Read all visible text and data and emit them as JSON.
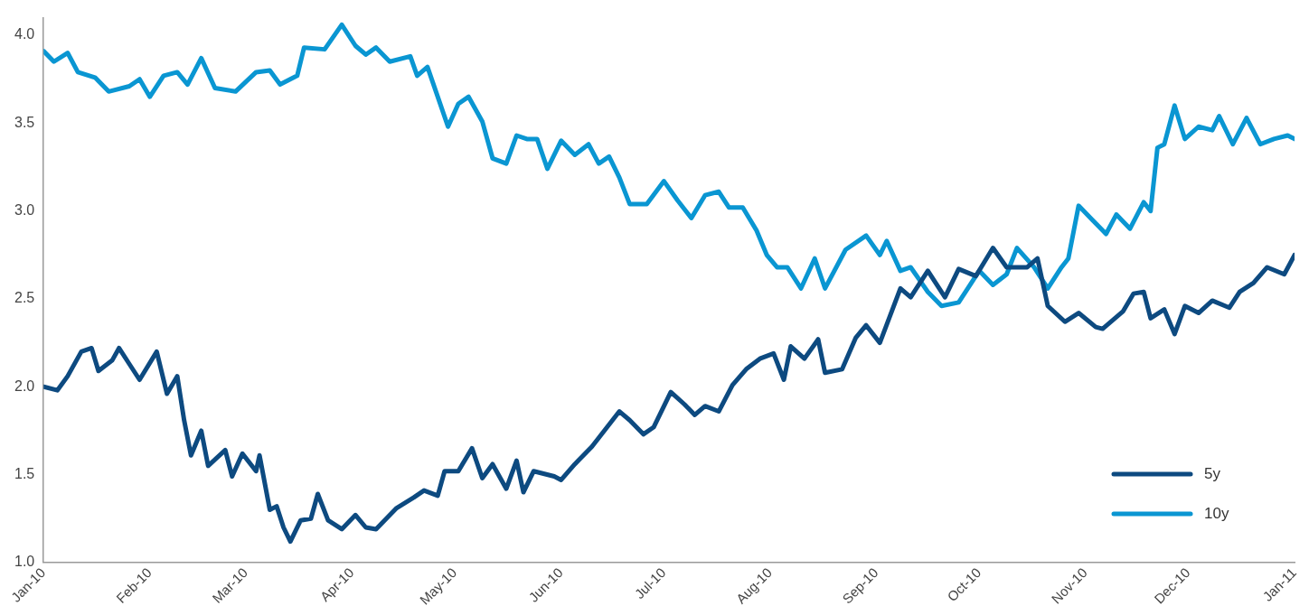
{
  "chart_data": {
    "type": "line",
    "legend": "bottom right",
    "marker": "none",
    "line_style": "solid",
    "grid": false,
    "xlim": [
      "2010-01-01",
      "2011-01-01"
    ],
    "xticks": [
      {
        "value": "2010-01-01",
        "label": "Jan-10"
      },
      {
        "value": "2010-02-01",
        "label": "Feb-10"
      },
      {
        "value": "2010-03-01",
        "label": "Mar-10"
      },
      {
        "value": "2010-04-01",
        "label": "Apr-10"
      },
      {
        "value": "2010-05-01",
        "label": "May-10"
      },
      {
        "value": "2010-06-01",
        "label": "Jun-10"
      },
      {
        "value": "2010-07-01",
        "label": "Jul-10"
      },
      {
        "value": "2010-08-01",
        "label": "Aug-10"
      },
      {
        "value": "2010-09-01",
        "label": "Sep-10"
      },
      {
        "value": "2010-10-01",
        "label": "Oct-10"
      },
      {
        "value": "2010-11-01",
        "label": "Nov-10"
      },
      {
        "value": "2010-12-01",
        "label": "Dec-10"
      },
      {
        "value": "2011-01-01",
        "label": "Jan-11"
      }
    ],
    "ylim": [
      1,
      4.1
    ],
    "yticks": [
      {
        "value": 1,
        "label": "1.0"
      },
      1.5,
      {
        "value": 2,
        "label": "2.0"
      },
      2.5,
      {
        "value": 3,
        "label": "3.0"
      },
      3.5,
      {
        "value": 4,
        "label": "4.0"
      }
    ],
    "series": [
      {
        "name": "5y",
        "color": "#0d4a80",
        "x": [
          "2010-01-01",
          "2010-01-05",
          "2010-01-08",
          "2010-01-12",
          "2010-01-15",
          "2010-01-17",
          "2010-01-21",
          "2010-01-23",
          "2010-01-26",
          "2010-01-29",
          "2010-02-03",
          "2010-02-06",
          "2010-02-09",
          "2010-02-11",
          "2010-02-13",
          "2010-02-16",
          "2010-02-18",
          "2010-02-23",
          "2010-02-25",
          "2010-02-28",
          "2010-03-04",
          "2010-03-05",
          "2010-03-08",
          "2010-03-10",
          "2010-03-12",
          "2010-03-14",
          "2010-03-17",
          "2010-03-20",
          "2010-03-22",
          "2010-03-25",
          "2010-03-29",
          "2010-04-02",
          "2010-04-05",
          "2010-04-08",
          "2010-04-14",
          "2010-04-19",
          "2010-04-22",
          "2010-04-26",
          "2010-04-28",
          "2010-05-02",
          "2010-05-06",
          "2010-05-09",
          "2010-05-12",
          "2010-05-16",
          "2010-05-19",
          "2010-05-21",
          "2010-05-24",
          "2010-05-30",
          "2010-06-01",
          "2010-06-05",
          "2010-06-10",
          "2010-06-12",
          "2010-06-18",
          "2010-06-21",
          "2010-06-25",
          "2010-06-28",
          "2010-07-03",
          "2010-07-07",
          "2010-07-10",
          "2010-07-13",
          "2010-07-17",
          "2010-07-21",
          "2010-07-25",
          "2010-07-29",
          "2010-08-02",
          "2010-08-05",
          "2010-08-07",
          "2010-08-11",
          "2010-08-15",
          "2010-08-17",
          "2010-08-22",
          "2010-08-26",
          "2010-08-29",
          "2010-09-02",
          "2010-09-08",
          "2010-09-11",
          "2010-09-16",
          "2010-09-21",
          "2010-09-25",
          "2010-09-30",
          "2010-10-05",
          "2010-10-09",
          "2010-10-15",
          "2010-10-18",
          "2010-10-21",
          "2010-10-26",
          "2010-10-30",
          "2010-11-04",
          "2010-11-06",
          "2010-11-12",
          "2010-11-15",
          "2010-11-18",
          "2010-11-20",
          "2010-11-24",
          "2010-11-27",
          "2010-11-30",
          "2010-12-04",
          "2010-12-08",
          "2010-12-13",
          "2010-12-16",
          "2010-12-20",
          "2010-12-24",
          "2010-12-29",
          "2011-01-01"
        ],
        "values": [
          2.0,
          1.98,
          2.06,
          2.2,
          2.22,
          2.09,
          2.15,
          2.22,
          2.13,
          2.04,
          2.2,
          1.96,
          2.06,
          1.81,
          1.61,
          1.75,
          1.55,
          1.64,
          1.49,
          1.62,
          1.52,
          1.61,
          1.3,
          1.32,
          1.2,
          1.12,
          1.24,
          1.25,
          1.39,
          1.24,
          1.19,
          1.27,
          1.2,
          1.19,
          1.31,
          1.37,
          1.41,
          1.38,
          1.52,
          1.52,
          1.65,
          1.48,
          1.56,
          1.42,
          1.58,
          1.4,
          1.52,
          1.49,
          1.47,
          1.56,
          1.66,
          1.71,
          1.86,
          1.81,
          1.73,
          1.77,
          1.97,
          1.9,
          1.84,
          1.89,
          1.86,
          2.01,
          2.1,
          2.16,
          2.19,
          2.04,
          2.23,
          2.16,
          2.27,
          2.08,
          2.1,
          2.28,
          2.35,
          2.25,
          2.56,
          2.51,
          2.66,
          2.51,
          2.67,
          2.63,
          2.79,
          2.68,
          2.68,
          2.73,
          2.46,
          2.37,
          2.42,
          2.34,
          2.33,
          2.43,
          2.53,
          2.54,
          2.39,
          2.44,
          2.3,
          2.46,
          2.42,
          2.49,
          2.45,
          2.54,
          2.59,
          2.68,
          2.64,
          2.75
        ]
      },
      {
        "name": "10y",
        "color": "#0a96d2",
        "x": [
          "2010-01-01",
          "2010-01-04",
          "2010-01-08",
          "2010-01-11",
          "2010-01-16",
          "2010-01-20",
          "2010-01-26",
          "2010-01-29",
          "2010-02-01",
          "2010-02-05",
          "2010-02-09",
          "2010-02-12",
          "2010-02-16",
          "2010-02-20",
          "2010-02-26",
          "2010-03-04",
          "2010-03-08",
          "2010-03-11",
          "2010-03-16",
          "2010-03-18",
          "2010-03-24",
          "2010-03-29",
          "2010-04-02",
          "2010-04-05",
          "2010-04-08",
          "2010-04-12",
          "2010-04-18",
          "2010-04-20",
          "2010-04-23",
          "2010-04-26",
          "2010-04-29",
          "2010-05-02",
          "2010-05-05",
          "2010-05-09",
          "2010-05-12",
          "2010-05-16",
          "2010-05-19",
          "2010-05-22",
          "2010-05-25",
          "2010-05-28",
          "2010-06-01",
          "2010-06-05",
          "2010-06-09",
          "2010-06-12",
          "2010-06-15",
          "2010-06-18",
          "2010-06-21",
          "2010-06-26",
          "2010-07-01",
          "2010-07-05",
          "2010-07-09",
          "2010-07-13",
          "2010-07-17",
          "2010-07-20",
          "2010-07-24",
          "2010-07-28",
          "2010-07-31",
          "2010-08-03",
          "2010-08-06",
          "2010-08-10",
          "2010-08-14",
          "2010-08-17",
          "2010-08-23",
          "2010-08-29",
          "2010-09-02",
          "2010-09-04",
          "2010-09-08",
          "2010-09-11",
          "2010-09-16",
          "2010-09-20",
          "2010-09-25",
          "2010-10-01",
          "2010-10-05",
          "2010-10-09",
          "2010-10-12",
          "2010-10-17",
          "2010-10-21",
          "2010-10-25",
          "2010-10-27",
          "2010-10-30",
          "2010-11-03",
          "2010-11-07",
          "2010-11-10",
          "2010-11-14",
          "2010-11-18",
          "2010-11-20",
          "2010-11-22",
          "2010-11-24",
          "2010-11-27",
          "2010-11-30",
          "2010-12-04",
          "2010-12-08",
          "2010-12-10",
          "2010-12-14",
          "2010-12-18",
          "2010-12-22",
          "2010-12-26",
          "2010-12-30",
          "2011-01-01"
        ],
        "values": [
          3.91,
          3.85,
          3.9,
          3.79,
          3.76,
          3.68,
          3.71,
          3.75,
          3.65,
          3.77,
          3.79,
          3.72,
          3.87,
          3.7,
          3.68,
          3.79,
          3.8,
          3.72,
          3.77,
          3.93,
          3.92,
          4.06,
          3.94,
          3.89,
          3.93,
          3.85,
          3.88,
          3.77,
          3.82,
          3.65,
          3.48,
          3.61,
          3.65,
          3.51,
          3.3,
          3.27,
          3.43,
          3.41,
          3.41,
          3.24,
          3.4,
          3.32,
          3.38,
          3.27,
          3.31,
          3.19,
          3.04,
          3.04,
          3.17,
          3.06,
          2.96,
          3.09,
          3.11,
          3.02,
          3.02,
          2.89,
          2.75,
          2.68,
          2.68,
          2.56,
          2.73,
          2.56,
          2.78,
          2.86,
          2.75,
          2.83,
          2.66,
          2.68,
          2.54,
          2.46,
          2.48,
          2.66,
          2.58,
          2.64,
          2.79,
          2.68,
          2.56,
          2.68,
          2.73,
          3.03,
          2.95,
          2.87,
          2.98,
          2.9,
          3.05,
          3.0,
          3.36,
          3.38,
          3.6,
          3.41,
          3.48,
          3.46,
          3.54,
          3.38,
          3.53,
          3.38,
          3.41,
          3.43,
          3.41
        ]
      }
    ]
  }
}
